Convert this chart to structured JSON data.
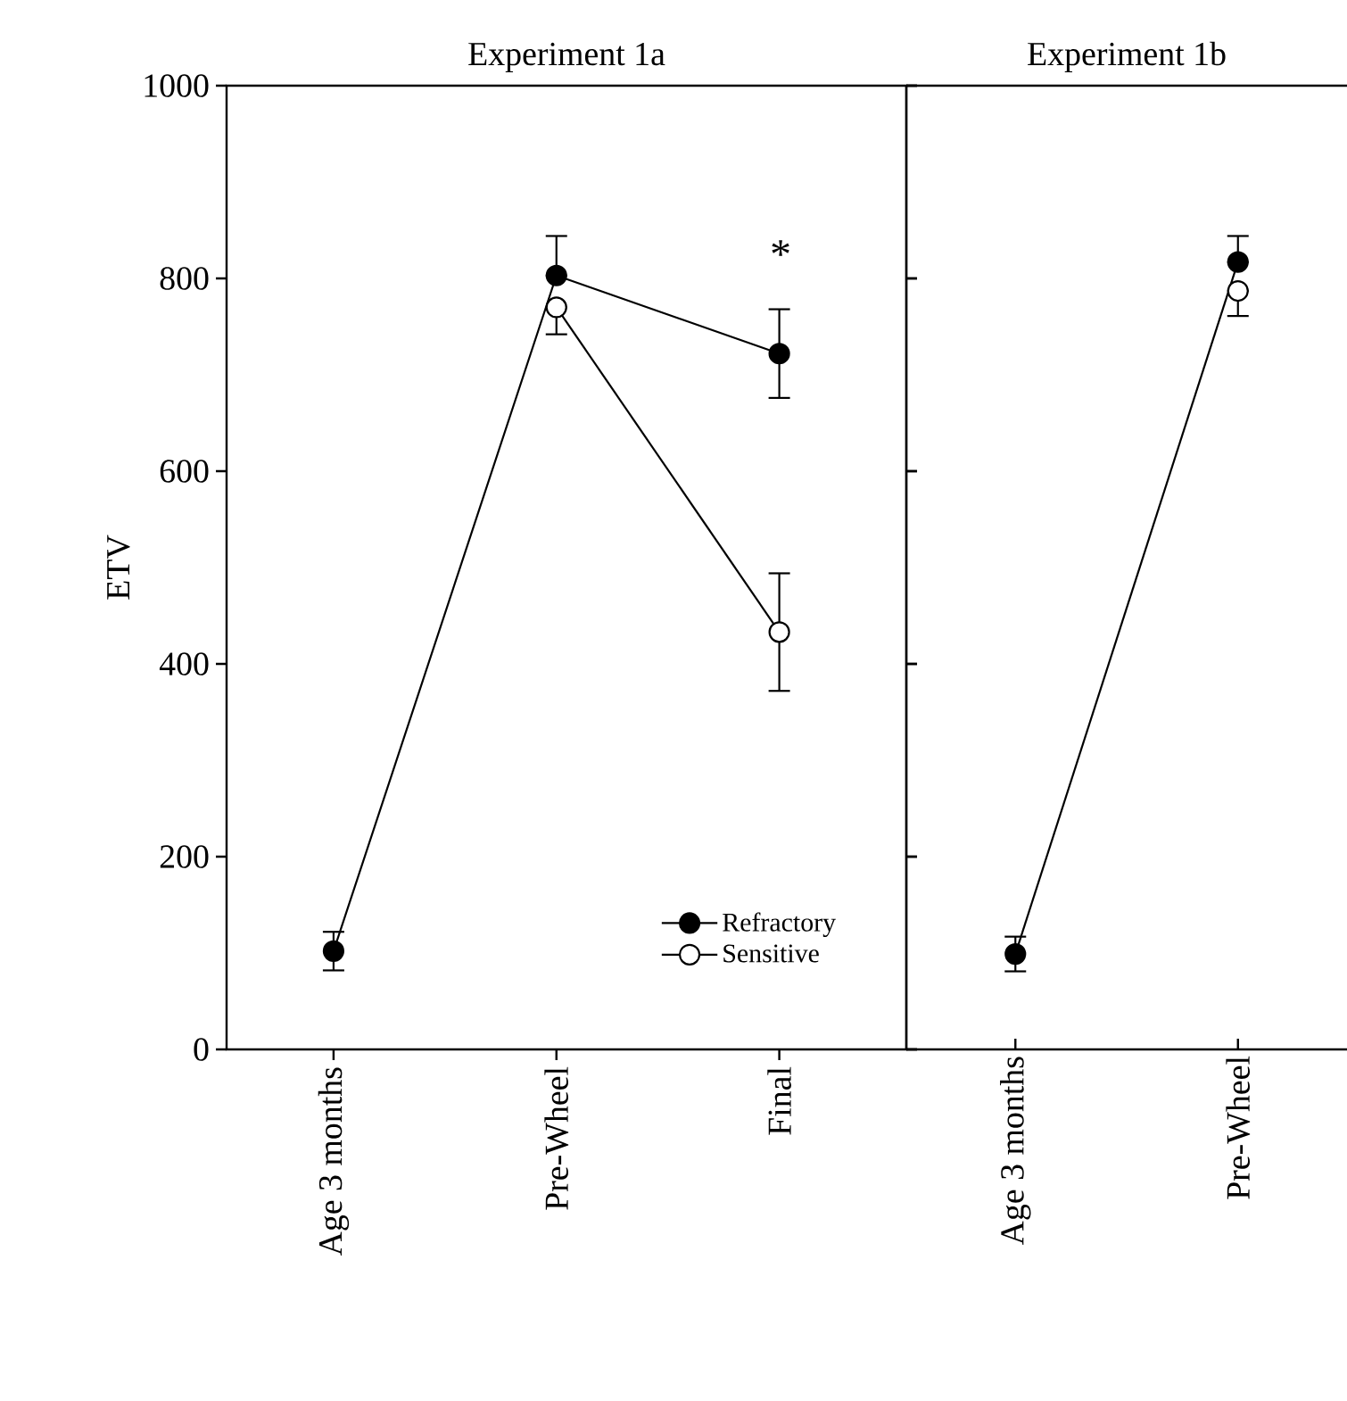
{
  "chart_data": [
    {
      "type": "line",
      "title": "Experiment 1a",
      "ylabel": "ETV",
      "categories": [
        "Age 3 months",
        "Pre-Wheel",
        "Final"
      ],
      "ylim": [
        0,
        1000
      ],
      "yticks": [
        0,
        200,
        400,
        600,
        800,
        1000
      ],
      "marker": "circle",
      "legend": "bottom right",
      "grid": false,
      "series": [
        {
          "name": "Refractory",
          "color": "#000000",
          "values": [
            102,
            803,
            722
          ],
          "errors": [
            20,
            [
              803,
              844
            ],
            46
          ]
        },
        {
          "name": "Sensitive",
          "color": "#ffffff",
          "values": [
            null,
            770,
            433
          ],
          "errors": [
            null,
            [
              742,
              770
            ],
            61
          ]
        }
      ],
      "annotations": [
        "*"
      ]
    },
    {
      "type": "line",
      "title": "Experiment 1b",
      "categories": [
        "Age 3 months",
        "Pre-Wheel"
      ],
      "ylim": [
        0,
        1000
      ],
      "yticks": [
        0,
        200,
        400,
        600,
        800,
        1000
      ],
      "marker": "circle",
      "tick_labels": "x",
      "grid": false,
      "series": [
        {
          "color": "#000000",
          "values": [
            99,
            817
          ],
          "errors": [
            18,
            [
              817,
              844
            ]
          ]
        },
        {
          "color": "#ffffff",
          "values": [
            null,
            787
          ],
          "errors": [
            null,
            [
              761,
              787
            ]
          ]
        }
      ]
    }
  ]
}
